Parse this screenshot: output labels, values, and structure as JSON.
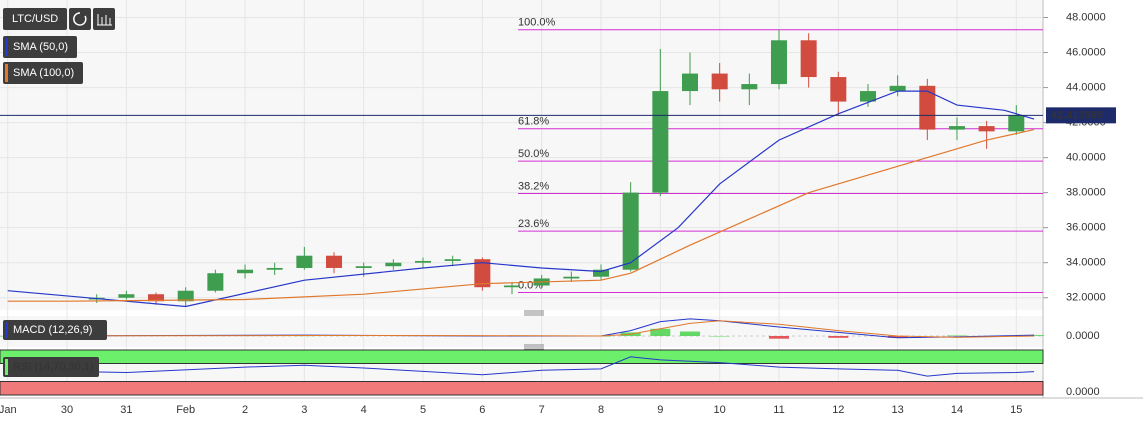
{
  "chart_data": [
    {
      "type": "candlestick",
      "title": "LTC/USD",
      "x": [
        1.5,
        2,
        2.5,
        3,
        3.5,
        4,
        4.5,
        5,
        5.5,
        6,
        6.5,
        7,
        7.5,
        8,
        8.5,
        9,
        9.5,
        10,
        10.5,
        11,
        11.5,
        12,
        12.5,
        13,
        13.5,
        14,
        14.5,
        15,
        15.5,
        16,
        16.5,
        17
      ],
      "open": [
        31.9,
        32.0,
        32.2,
        31.8,
        32.4,
        33.4,
        33.6,
        33.7,
        34.4,
        33.7,
        33.8,
        34.0,
        34.1,
        34.2,
        32.6,
        32.7,
        33.1,
        33.2,
        33.6,
        38.0,
        43.8,
        44.8,
        43.9,
        44.2,
        46.7,
        44.6,
        43.2,
        43.8,
        44.1,
        41.6,
        41.8,
        41.5
      ],
      "high": [
        32.2,
        32.4,
        32.3,
        32.6,
        33.6,
        33.9,
        34.0,
        34.9,
        34.6,
        34.0,
        34.2,
        34.3,
        34.4,
        34.3,
        32.9,
        33.3,
        33.5,
        33.9,
        38.6,
        46.2,
        46.0,
        45.4,
        44.8,
        47.3,
        47.1,
        44.9,
        44.2,
        44.7,
        44.5,
        42.3,
        42.1,
        43.0
      ],
      "low": [
        31.7,
        31.9,
        31.6,
        31.5,
        32.3,
        33.1,
        33.3,
        33.6,
        33.4,
        33.2,
        33.6,
        33.7,
        33.8,
        32.4,
        32.2,
        32.6,
        32.9,
        33.0,
        33.5,
        37.8,
        43.0,
        43.2,
        43.0,
        43.9,
        44.0,
        42.4,
        42.9,
        43.5,
        41.0,
        41.0,
        40.5,
        41.3
      ],
      "close": [
        32.0,
        32.2,
        31.8,
        32.4,
        33.4,
        33.6,
        33.7,
        34.4,
        33.7,
        33.8,
        34.0,
        34.1,
        34.2,
        32.6,
        32.7,
        33.1,
        33.2,
        33.6,
        38.0,
        43.8,
        44.8,
        43.9,
        44.2,
        46.7,
        44.6,
        43.2,
        43.8,
        44.1,
        41.6,
        41.8,
        41.5,
        42.4
      ],
      "up_color": "#3f9d4f",
      "down_color": "#d24b3f",
      "series": [
        {
          "name": "SMA (50,0)",
          "color": "#2637c9",
          "x": [
            0,
            2,
            3,
            5,
            7,
            8,
            9,
            10,
            10.5,
            11.3,
            12,
            13,
            14,
            15,
            15.5,
            16,
            16.8,
            17.3
          ],
          "values": [
            32.4,
            31.8,
            31.5,
            33.0,
            33.7,
            34.0,
            33.7,
            33.5,
            34.0,
            36.0,
            38.5,
            41.0,
            42.5,
            43.8,
            43.8,
            43.0,
            42.7,
            42.2
          ]
        },
        {
          "name": "SMA (100,0)",
          "color": "#e0782c",
          "x": [
            0,
            1,
            4,
            6,
            8,
            10,
            10.5,
            11.5,
            12.5,
            13.5,
            14.5,
            15.5,
            16.5,
            17.3
          ],
          "values": [
            31.8,
            31.8,
            31.9,
            32.2,
            32.8,
            33.0,
            33.4,
            35.0,
            36.5,
            38.0,
            39.0,
            40.0,
            41.0,
            41.6
          ]
        }
      ],
      "fib_color": "#d42fd4",
      "fib_levels": [
        {
          "label": "100.0%",
          "value": 47.3
        },
        {
          "label": "61.8%",
          "value": 41.65
        },
        {
          "label": "50.0%",
          "value": 39.8
        },
        {
          "label": "38.2%",
          "value": 37.95
        },
        {
          "label": "23.6%",
          "value": 35.8
        },
        {
          "label": "0.0%",
          "value": 32.3
        }
      ],
      "last_price": {
        "value": 42.413989,
        "label": "42.413989"
      },
      "ylim": [
        31.3,
        49.0
      ],
      "yticks": [
        {
          "value": 32,
          "label": "32.0000"
        },
        {
          "value": 34,
          "label": "34.0000"
        },
        {
          "value": 36,
          "label": "36.0000"
        },
        {
          "value": 38,
          "label": "38.0000"
        },
        {
          "value": 40,
          "label": "40.0000"
        },
        {
          "value": 42,
          "label": "42.0000"
        },
        {
          "value": 44,
          "label": "44.0000"
        },
        {
          "value": 46,
          "label": "46.0000"
        },
        {
          "value": 48,
          "label": "48.0000"
        }
      ],
      "xlim": [
        -0.13,
        17.45
      ],
      "xticks": [
        {
          "value": 0,
          "label": "Jan"
        },
        {
          "value": 1,
          "label": "30"
        },
        {
          "value": 2,
          "label": "31"
        },
        {
          "value": 3,
          "label": "Feb"
        },
        {
          "value": 4,
          "label": "2"
        },
        {
          "value": 5,
          "label": "3"
        },
        {
          "value": 6,
          "label": "4"
        },
        {
          "value": 7,
          "label": "5"
        },
        {
          "value": 8,
          "label": "6"
        },
        {
          "value": 9,
          "label": "7"
        },
        {
          "value": 10,
          "label": "8"
        },
        {
          "value": 11,
          "label": "9"
        },
        {
          "value": 12,
          "label": "10"
        },
        {
          "value": 13,
          "label": "11"
        },
        {
          "value": 14,
          "label": "12"
        },
        {
          "value": 15,
          "label": "13"
        },
        {
          "value": 16,
          "label": "14"
        },
        {
          "value": 17,
          "label": "15"
        }
      ],
      "grid": true
    },
    {
      "type": "macd",
      "title": "MACD (12,26,9)",
      "x": [
        0,
        5,
        8,
        10,
        10.5,
        11,
        11.5,
        12,
        13,
        14,
        15,
        16,
        17.3
      ],
      "macd": [
        0,
        0.05,
        0,
        0,
        0.3,
        0.8,
        0.95,
        0.85,
        0.5,
        0.2,
        -0.1,
        -0.05,
        0.05
      ],
      "signal": [
        0,
        0.03,
        0.02,
        0,
        0.1,
        0.4,
        0.7,
        0.85,
        0.65,
        0.3,
        0,
        -0.08,
        0
      ],
      "histogram": [
        0,
        0.02,
        -0.02,
        0,
        0.2,
        0.4,
        0.25,
        0,
        -0.15,
        -0.1,
        -0.1,
        0.03,
        0.05
      ],
      "macd_color": "#2637c9",
      "signal_color": "#e0782c",
      "up_color": "#3fcf3f",
      "down_color": "#e03030",
      "ylim": [
        -0.5,
        1.0
      ],
      "yticks": [
        {
          "value": 0,
          "label": "0.0000"
        }
      ]
    },
    {
      "type": "rsi",
      "title": "RSI (14,70,30,1)",
      "x": [
        0,
        2,
        4,
        5,
        6,
        8,
        9,
        10,
        10.5,
        11,
        12,
        13,
        14,
        15,
        15.5,
        16,
        17,
        17.3
      ],
      "values": [
        55,
        50,
        62,
        66,
        60,
        45,
        55,
        58,
        85,
        78,
        72,
        62,
        58,
        55,
        42,
        48,
        50,
        52
      ],
      "color": "#2637c9",
      "upper_band": 70,
      "lower_band": 30,
      "upper_color": "#6cf06c",
      "lower_color": "#f07a7a",
      "ylim": [
        0,
        100
      ],
      "yticks": [
        {
          "value": 0,
          "label": "0.0000"
        }
      ]
    }
  ]
}
